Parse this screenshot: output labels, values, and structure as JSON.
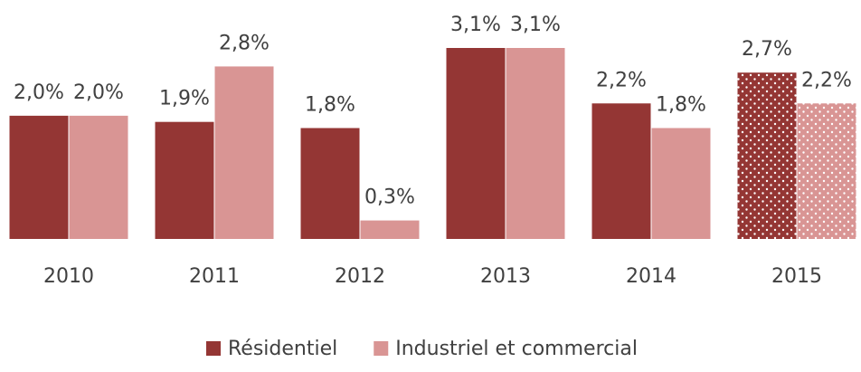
{
  "chart_data": {
    "type": "bar",
    "categories": [
      "2010",
      "2011",
      "2012",
      "2013",
      "2014",
      "2015"
    ],
    "series": [
      {
        "name": "Résidentiel",
        "color": "#943634",
        "values": [
          2.0,
          1.9,
          1.8,
          3.1,
          2.2,
          2.7
        ],
        "value_labels": [
          "2,0%",
          "1,9%",
          "1,8%",
          "3,1%",
          "2,2%",
          "2,7%"
        ]
      },
      {
        "name": "Industriel et commercial",
        "color": "#d99594",
        "values": [
          2.0,
          2.8,
          0.3,
          3.1,
          1.8,
          2.2
        ],
        "value_labels": [
          "2,0%",
          "2,8%",
          "0,3%",
          "3,1%",
          "1,8%",
          "2,2%"
        ]
      }
    ],
    "ylim": [
      0,
      3.1
    ],
    "grid": false,
    "legend": "bottom",
    "pattern": "dots",
    "pattern_categories": [
      5
    ]
  }
}
